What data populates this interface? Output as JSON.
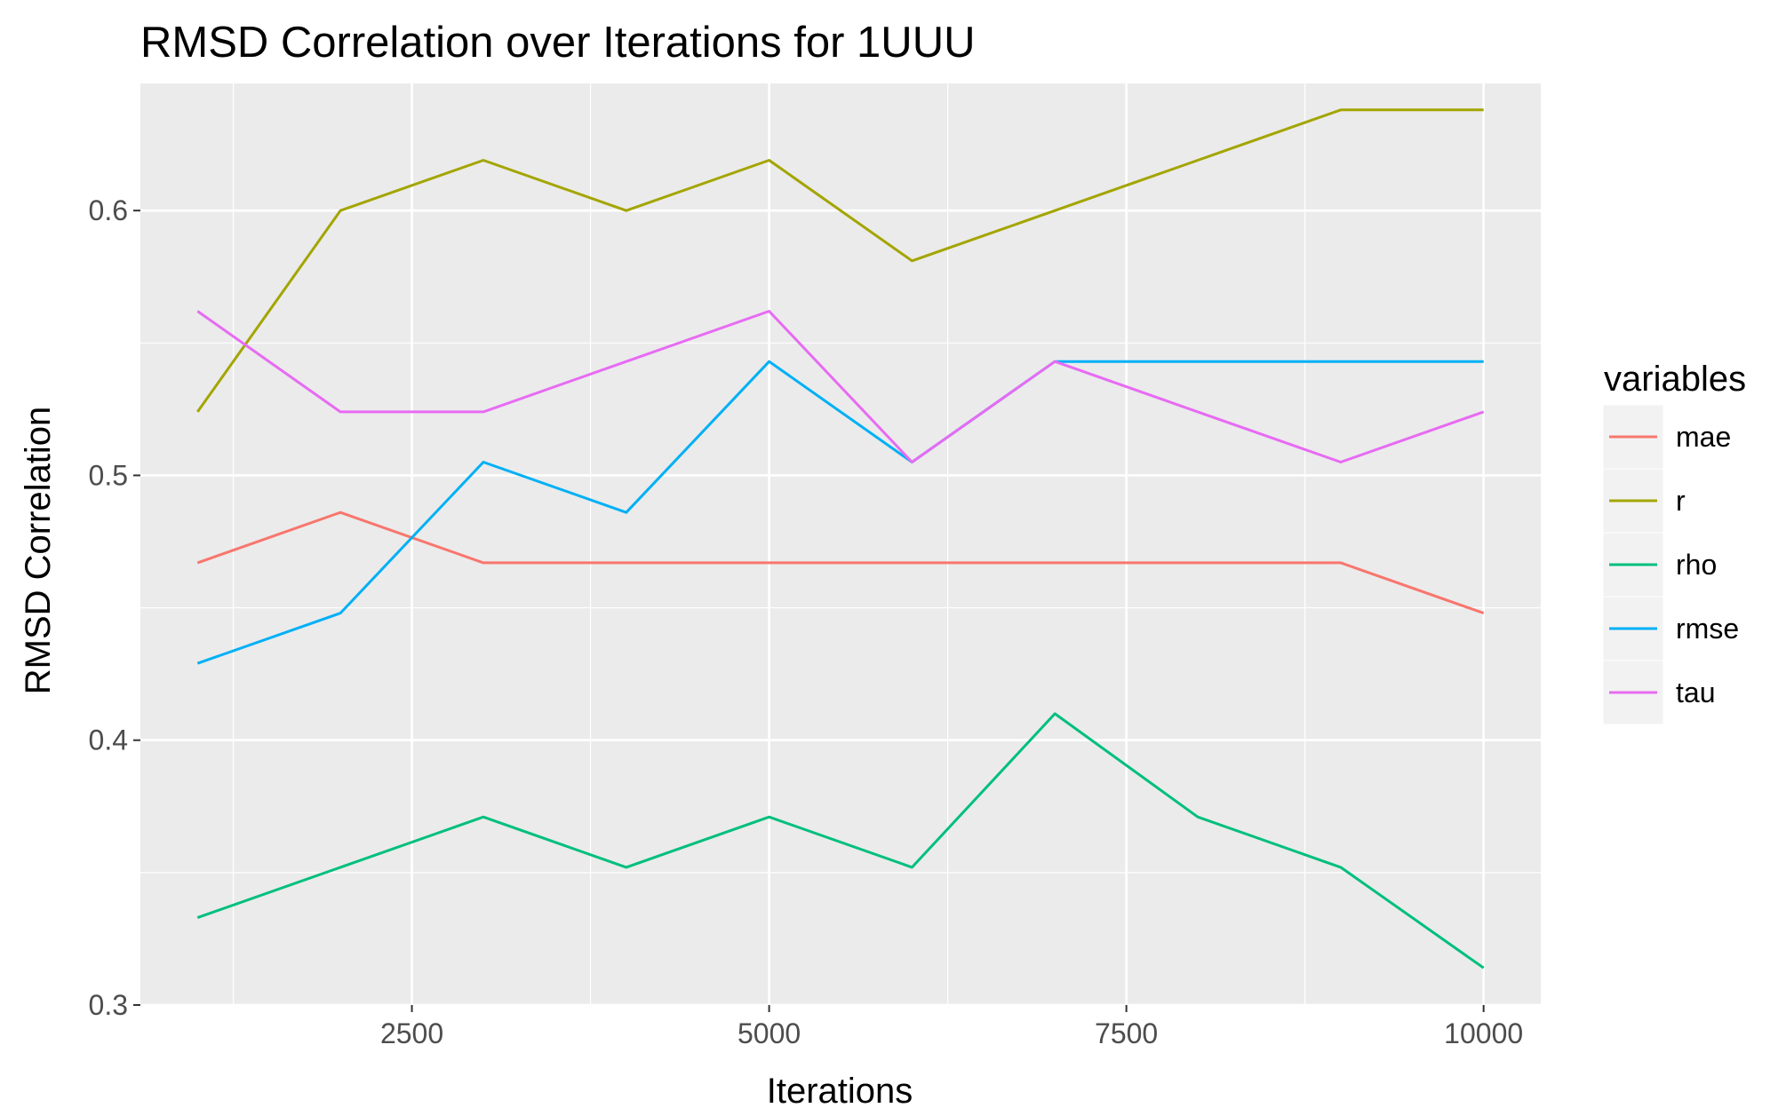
{
  "chart_data": {
    "type": "line",
    "title": "RMSD Correlation over Iterations for 1UUU",
    "xlabel": "Iterations",
    "ylabel": "RMSD Correlation",
    "xlim": [
      600,
      10400
    ],
    "ylim": [
      0.3,
      0.648
    ],
    "x_ticks": [
      2500,
      5000,
      7500,
      10000
    ],
    "x_tick_labels": [
      "2500",
      "5000",
      "7500",
      "10000"
    ],
    "y_ticks": [
      0.3,
      0.4,
      0.5,
      0.6
    ],
    "y_tick_labels": [
      "0.3",
      "0.4",
      "0.5",
      "0.6"
    ],
    "grid": true,
    "legend_title": "variables",
    "legend_position": "right",
    "x": [
      1000,
      2000,
      3000,
      4000,
      5000,
      6000,
      7000,
      8000,
      9000,
      10000
    ],
    "series": [
      {
        "name": "mae",
        "color": "#F8766D",
        "values": [
          0.467,
          0.486,
          0.467,
          0.467,
          0.467,
          0.467,
          0.467,
          0.467,
          0.467,
          0.448
        ]
      },
      {
        "name": "r",
        "color": "#A3A500",
        "values": [
          0.524,
          0.6,
          0.619,
          0.6,
          0.619,
          0.581,
          0.6,
          0.619,
          0.638,
          0.638
        ]
      },
      {
        "name": "rho",
        "color": "#00BF7D",
        "values": [
          0.333,
          0.352,
          0.371,
          0.352,
          0.371,
          0.352,
          0.41,
          0.371,
          0.352,
          0.314
        ]
      },
      {
        "name": "rmse",
        "color": "#00B0F6",
        "values": [
          0.429,
          0.448,
          0.505,
          0.486,
          0.543,
          0.505,
          0.543,
          0.543,
          0.543,
          0.543
        ]
      },
      {
        "name": "tau",
        "color": "#E76BF3",
        "values": [
          0.562,
          0.524,
          0.524,
          0.543,
          0.562,
          0.505,
          0.543,
          0.524,
          0.505,
          0.524
        ]
      }
    ]
  }
}
